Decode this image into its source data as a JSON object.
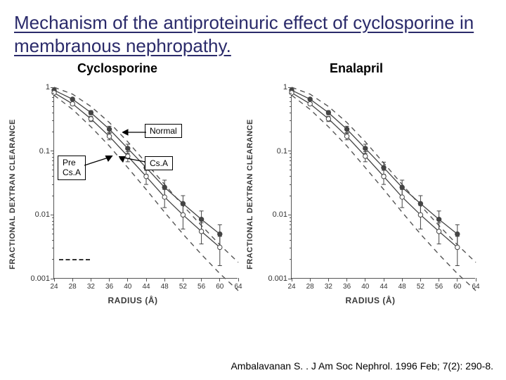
{
  "title": "Mechanism of the antiproteinuric effect of cyclosporine in membranous nephropathy.",
  "left_subtitle": "Cyclosporine",
  "right_subtitle": "Enalapril",
  "citation": "Ambalavanan S. . J Am Soc Nephrol. 1996 Feb; 7(2): 290-8.",
  "ylabel": "FRACTIONAL DEXTRAN CLEARANCE",
  "xlabel": "RADIUS (Å)",
  "annot_normal": "Normal",
  "annot_csa": "Cs.A",
  "annot_pre": "Pre\nCs.A",
  "chart": {
    "type": "line_log",
    "xlim": [
      24,
      64
    ],
    "ylim_log10": [
      -3,
      0
    ],
    "xtick_step": 4,
    "yticks_log10": [
      0,
      -1,
      -2,
      -3
    ],
    "ytick_labels": [
      "1",
      "0.1",
      "0.01",
      "0.001"
    ],
    "line_color": "#444444",
    "marker_open_color": "#ffffff",
    "marker_stroke": "#444444",
    "marker_filled_color": "#444444",
    "dashed_line_color": "#555555",
    "background_color": "#ffffff",
    "axis_color": "#555555",
    "font_color": "#333333",
    "dashed_upper": {
      "x": [
        24,
        28,
        32,
        36,
        40,
        44,
        48,
        52,
        56,
        60,
        64
      ],
      "y": [
        1.0,
        0.78,
        0.5,
        0.28,
        0.14,
        0.065,
        0.03,
        0.014,
        0.0068,
        0.0034,
        0.0018
      ]
    },
    "dashed_lower": {
      "x": [
        24,
        28,
        32,
        36,
        40,
        44,
        48,
        52,
        56,
        60,
        64
      ],
      "y": [
        0.75,
        0.45,
        0.24,
        0.12,
        0.055,
        0.025,
        0.011,
        0.005,
        0.0024,
        0.0012,
        0.00065
      ]
    },
    "series_open": {
      "label": "Cs.A / post",
      "marker": "open_circle",
      "x": [
        24,
        28,
        32,
        36,
        40,
        44,
        48,
        52,
        56,
        60
      ],
      "y": [
        0.82,
        0.55,
        0.32,
        0.17,
        0.083,
        0.04,
        0.019,
        0.01,
        0.0055,
        0.0031
      ],
      "err": [
        0.02,
        0.03,
        0.03,
        0.02,
        0.015,
        0.01,
        0.006,
        0.004,
        0.002,
        0.0015
      ]
    },
    "series_filled": {
      "label": "Pre Cs.A / pre",
      "marker": "filled_circle",
      "x": [
        24,
        28,
        32,
        36,
        40,
        44,
        48,
        52,
        56,
        60
      ],
      "y": [
        0.9,
        0.65,
        0.4,
        0.22,
        0.11,
        0.055,
        0.027,
        0.015,
        0.0085,
        0.005
      ],
      "err": [
        0.02,
        0.03,
        0.03,
        0.025,
        0.018,
        0.012,
        0.008,
        0.005,
        0.003,
        0.002
      ]
    }
  }
}
